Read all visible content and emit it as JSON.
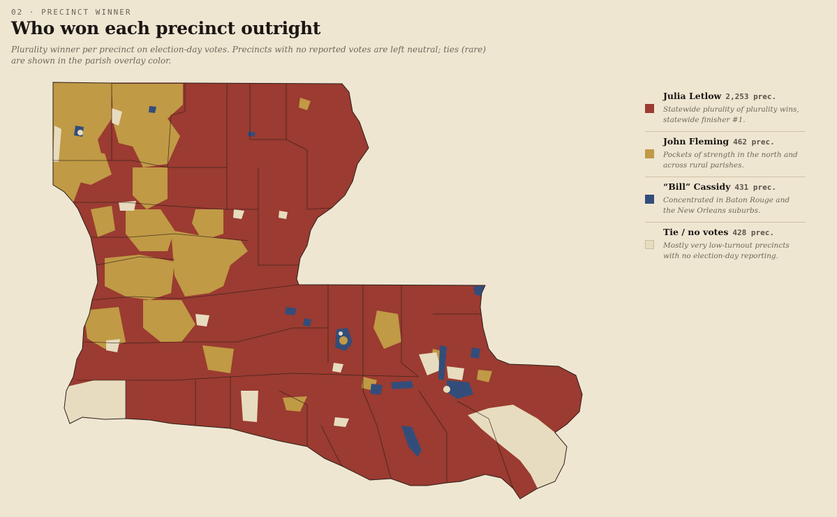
{
  "header": {
    "eyebrow": "02 · PRECINCT WINNER",
    "title": "Who won each precinct outright",
    "subtitle": "Plurality winner per precinct on election-day votes. Precincts with no reported votes are left neutral; ties (rare) are shown in the parish overlay color."
  },
  "colors": {
    "background": "#efe6d2",
    "letlow": "#9b3b31",
    "fleming": "#c09a45",
    "cassidy": "#334d7a",
    "neutral": "#e7dcbf",
    "border": "#2a1e18"
  },
  "legend": [
    {
      "name": "Julia Letlow",
      "count": "2,253 prec.",
      "desc": "Statewide plurality of plurality wins, statewide finisher #1.",
      "color": "#9b3b31"
    },
    {
      "name": "John Fleming",
      "count": "462 prec.",
      "desc": "Pockets of strength in the north and across rural parishes.",
      "color": "#c09a45"
    },
    {
      "name": "“Bill” Cassidy",
      "count": "431 prec.",
      "desc": "Concentrated in Baton Rouge and the New Orleans suburbs.",
      "color": "#334d7a"
    },
    {
      "name": "Tie / no votes",
      "count": "428 prec.",
      "desc": "Mostly very low-turnout precincts with no election-day reporting.",
      "color": "#e7dcbf"
    }
  ]
}
